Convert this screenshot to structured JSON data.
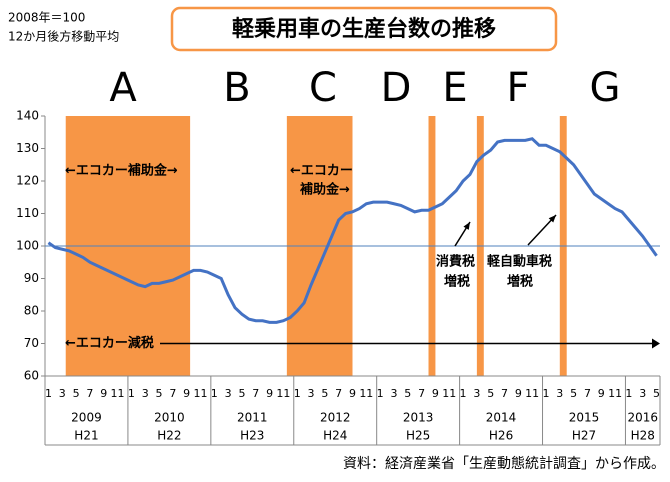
{
  "chart_data": {
    "type": "line",
    "title": "軽乗用車の生産台数の推移",
    "notes": [
      "2008年＝100",
      "12か月後方移動平均"
    ],
    "source": "資料：経済産業省「生産動態統計調査」から作成。",
    "period_letters": [
      "A",
      "B",
      "C",
      "D",
      "E",
      "F",
      "G"
    ],
    "annotations": [
      "←エコカー補助金→",
      "←エコカー",
      "補助金→",
      "消費税",
      "増税",
      "軽自動車税",
      "増税",
      "←エコカー減税"
    ],
    "categories": [
      "1",
      null,
      "3",
      null,
      "5",
      null,
      "7",
      null,
      "9",
      null,
      "11",
      null,
      "1",
      null,
      "3",
      null,
      "5",
      null,
      "7",
      null,
      "9",
      null,
      "11",
      null,
      "1",
      null,
      "3",
      null,
      "5",
      null,
      "7",
      null,
      "9",
      null,
      "11",
      null,
      "1",
      null,
      "3",
      null,
      "5",
      null,
      "7",
      null,
      "9",
      null,
      "11",
      null,
      "1",
      null,
      "3",
      null,
      "5",
      null,
      "7",
      null,
      "9",
      null,
      "11",
      null,
      "1",
      null,
      "3",
      null,
      "5",
      null,
      "7",
      null,
      "9",
      null,
      "11",
      null,
      "1",
      null,
      "3",
      null,
      "5",
      null,
      "7",
      null,
      "9",
      null,
      "11",
      null,
      "1",
      null,
      "3",
      null,
      "5"
    ],
    "years": [
      "2009",
      "2010",
      "2011",
      "2012",
      "2013",
      "2014",
      "2015",
      "2016"
    ],
    "eras": [
      "H21",
      "H22",
      "H23",
      "H24",
      "H25",
      "H26",
      "H27",
      "H28"
    ],
    "values": [
      101,
      99.5,
      99,
      98.5,
      97.5,
      96.5,
      95,
      94,
      93,
      92,
      91,
      90,
      89,
      88,
      87.5,
      88.5,
      88.5,
      89,
      89.5,
      90.5,
      91.5,
      92.5,
      92.5,
      92,
      91,
      90,
      85,
      81,
      79,
      77.5,
      77,
      77,
      76.5,
      76.5,
      77,
      78,
      80,
      82.5,
      88,
      93,
      98,
      103,
      108,
      110,
      110.5,
      111.5,
      113,
      113.5,
      113.5,
      113.5,
      113,
      112.5,
      111.5,
      110.5,
      111,
      111,
      112,
      113,
      115,
      117,
      120,
      122,
      126,
      128,
      129.5,
      132,
      132.5,
      132.5,
      132.5,
      132.5,
      133,
      131,
      131,
      130,
      129,
      127,
      125,
      122,
      119,
      116,
      114.5,
      113,
      111.5,
      110.5,
      108,
      105.5,
      103,
      100,
      97
    ],
    "color": "#4472c4",
    "reference_line": 100,
    "tax_cut_level": 70,
    "bands": [
      [
        3,
        21
      ],
      [
        35,
        44.5
      ],
      [
        55.5,
        56.5
      ],
      [
        62.5,
        63.5
      ],
      [
        74.5,
        75.5
      ]
    ],
    "band_color": "#f79646",
    "ylim": [
      60,
      140
    ],
    "yticks": [
      60,
      70,
      80,
      90,
      100,
      110,
      120,
      130,
      140
    ]
  }
}
